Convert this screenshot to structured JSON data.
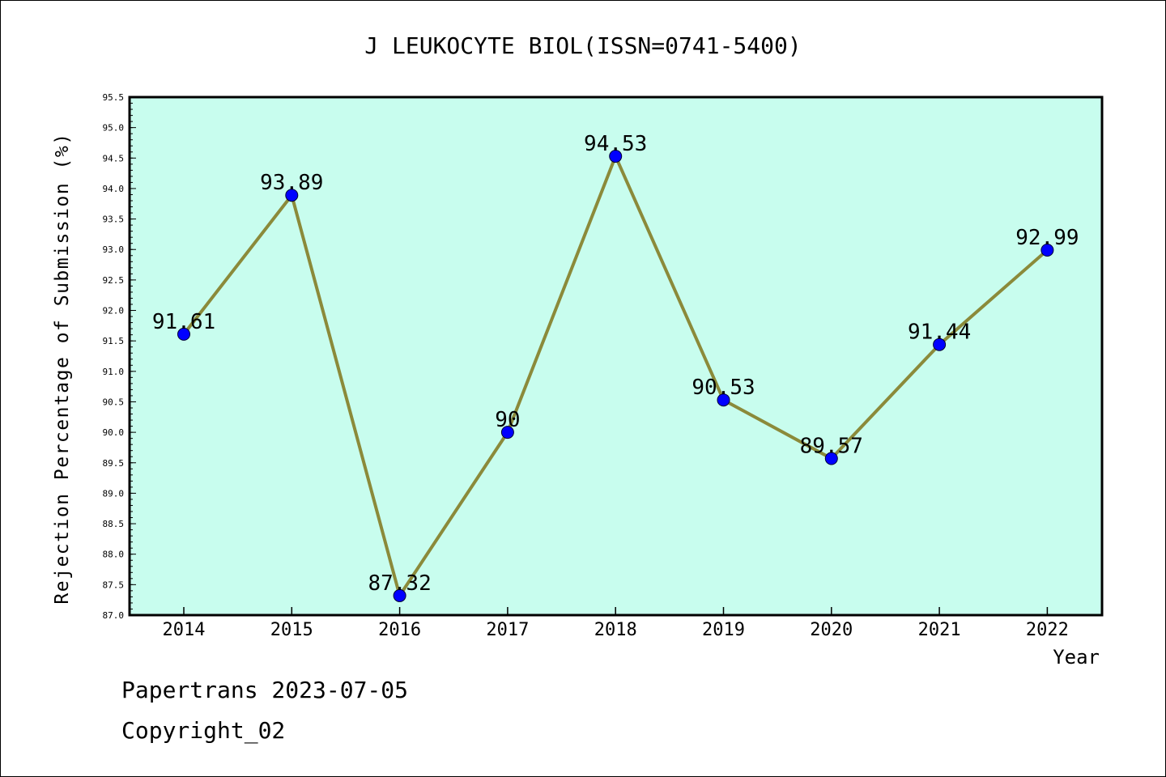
{
  "chart_data": {
    "type": "line",
    "title": "J LEUKOCYTE BIOL(ISSN=0741-5400)",
    "xlabel": "Year",
    "ylabel": "Rejection Percentage of Submission (%)",
    "categories": [
      "2014",
      "2015",
      "2016",
      "2017",
      "2018",
      "2019",
      "2020",
      "2021",
      "2022"
    ],
    "values": [
      91.61,
      93.89,
      87.32,
      90,
      94.53,
      90.53,
      89.57,
      91.44,
      92.99
    ],
    "data_labels": [
      "91.61",
      "93.89",
      "87.32",
      "90",
      "94.53",
      "90.53",
      "89.57",
      "91.44",
      "92.99"
    ],
    "ylim": [
      87.0,
      95.5
    ],
    "yticks": [
      "87.0",
      "87.5",
      "88.0",
      "88.5",
      "89.0",
      "89.5",
      "90.0",
      "90.5",
      "91.0",
      "91.5",
      "92.0",
      "92.5",
      "93.0",
      "93.5",
      "94.0",
      "94.5",
      "95.0",
      "95.5"
    ],
    "colors": {
      "plot_bg": "#c8fdee",
      "line": "#8b8a3a",
      "marker": "#0000ff"
    },
    "grid": false,
    "legend": "none"
  },
  "footer": {
    "source": "Papertrans 2023-07-05",
    "copyright": "Copyright_02"
  }
}
